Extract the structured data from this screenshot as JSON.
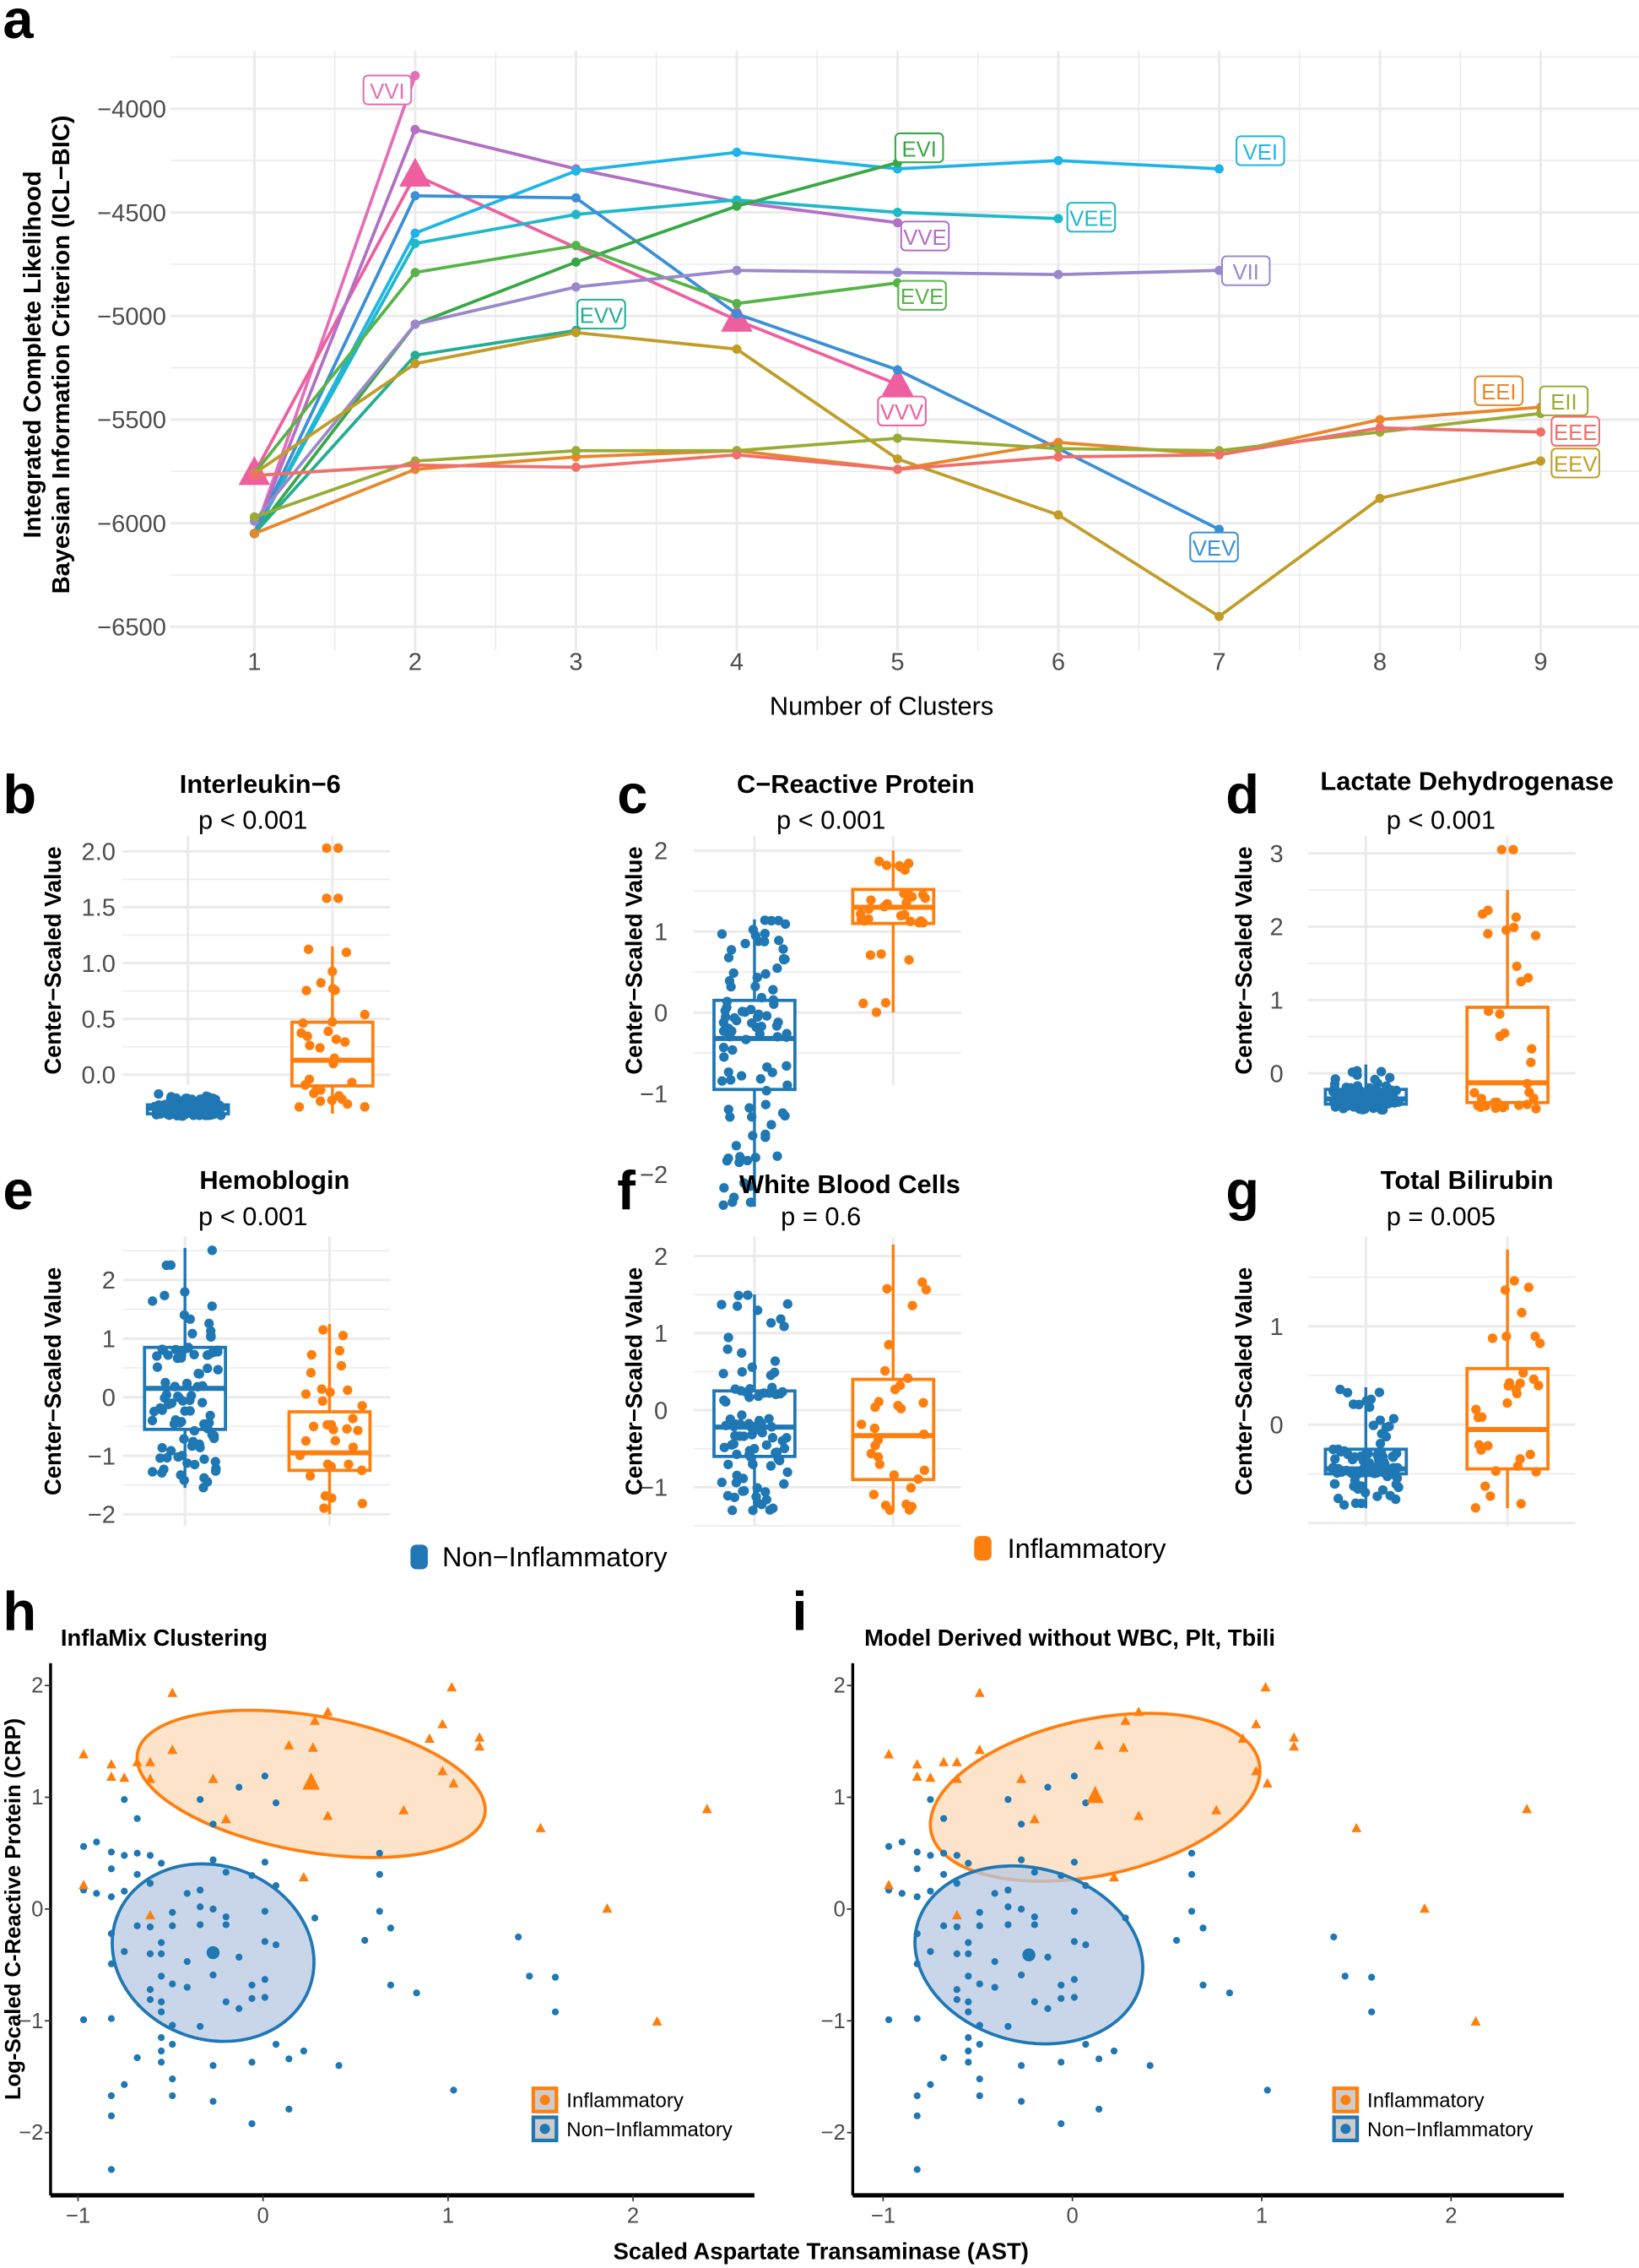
{
  "panel_letters": {
    "a": "a",
    "b": "b",
    "c": "c",
    "d": "d",
    "e": "e",
    "f": "f",
    "g": "g",
    "h": "h",
    "i": "i"
  },
  "chart_data": [
    {
      "id": "a",
      "type": "line",
      "xlabel": "Number of Clusters",
      "ylabel": [
        "Integrated Complete Likelihood",
        "Bayesian Information Criterion (ICL−BIC)"
      ],
      "xticks": [
        1,
        2,
        3,
        4,
        5,
        6,
        7,
        8,
        9
      ],
      "yticks": [
        -4000,
        -4500,
        -5000,
        -5500,
        -6000,
        -6500
      ],
      "ylim": [
        -6600,
        -3750
      ],
      "grid": true,
      "series": [
        {
          "name": "VVI",
          "color": "#e36fb8",
          "points": [
            [
              1,
              -6050
            ],
            [
              2,
              -3840
            ]
          ]
        },
        {
          "name": "VVV",
          "color": "#ee5fa0",
          "marker": "triangle",
          "points": [
            [
              1,
              -5760
            ],
            [
              2,
              -4320
            ],
            [
              3,
              -4670
            ],
            [
              4,
              -5020
            ],
            [
              5,
              -5330
            ]
          ]
        },
        {
          "name": "VVE",
          "color": "#b26fc3",
          "points": [
            [
              1,
              -6050
            ],
            [
              2,
              -4100
            ],
            [
              3,
              -4290
            ],
            [
              4,
              -4450
            ],
            [
              5,
              -4550
            ]
          ]
        },
        {
          "name": "VEI",
          "color": "#1fb4e8",
          "points": [
            [
              1,
              -6050
            ],
            [
              2,
              -4600
            ],
            [
              3,
              -4300
            ],
            [
              4,
              -4210
            ],
            [
              5,
              -4290
            ],
            [
              6,
              -4250
            ],
            [
              7,
              -4290
            ]
          ]
        },
        {
          "name": "VEE",
          "color": "#1fb8c8",
          "points": [
            [
              1,
              -6050
            ],
            [
              2,
              -4650
            ],
            [
              3,
              -4510
            ],
            [
              4,
              -4440
            ],
            [
              5,
              -4500
            ],
            [
              6,
              -4530
            ]
          ]
        },
        {
          "name": "VEV",
          "color": "#3a8fd6",
          "points": [
            [
              1,
              -6050
            ],
            [
              2,
              -4420
            ],
            [
              3,
              -4430
            ],
            [
              4,
              -4990
            ],
            [
              5,
              -5260
            ],
            [
              6,
              -5640
            ],
            [
              7,
              -6030
            ]
          ]
        },
        {
          "name": "EVI",
          "color": "#38a846",
          "points": [
            [
              1,
              -6050
            ],
            [
              2,
              -5040
            ],
            [
              3,
              -4740
            ],
            [
              4,
              -4470
            ],
            [
              5,
              -4260
            ]
          ]
        },
        {
          "name": "EVE",
          "color": "#56b447",
          "points": [
            [
              1,
              -5760
            ],
            [
              2,
              -4790
            ],
            [
              3,
              -4660
            ],
            [
              4,
              -4940
            ],
            [
              5,
              -4840
            ]
          ]
        },
        {
          "name": "VII",
          "color": "#9b88cc",
          "points": [
            [
              1,
              -5990
            ],
            [
              2,
              -5040
            ],
            [
              3,
              -4860
            ],
            [
              4,
              -4780
            ],
            [
              5,
              -4790
            ],
            [
              6,
              -4800
            ],
            [
              7,
              -4780
            ]
          ]
        },
        {
          "name": "EVV",
          "color": "#22ad94",
          "points": [
            [
              1,
              -6050
            ],
            [
              2,
              -5190
            ],
            [
              3,
              -5070
            ]
          ]
        },
        {
          "name": "EEV",
          "color": "#c19d27",
          "points": [
            [
              1,
              -5760
            ],
            [
              2,
              -5230
            ],
            [
              3,
              -5080
            ],
            [
              4,
              -5160
            ],
            [
              5,
              -5690
            ],
            [
              6,
              -5960
            ],
            [
              7,
              -6450
            ],
            [
              8,
              -5880
            ],
            [
              9,
              -5700
            ]
          ]
        },
        {
          "name": "EEI",
          "color": "#e8862a",
          "points": [
            [
              1,
              -6050
            ],
            [
              2,
              -5740
            ],
            [
              3,
              -5680
            ],
            [
              4,
              -5650
            ],
            [
              5,
              -5740
            ],
            [
              6,
              -5610
            ],
            [
              7,
              -5670
            ],
            [
              8,
              -5500
            ],
            [
              9,
              -5440
            ]
          ]
        },
        {
          "name": "EII",
          "color": "#98ab35",
          "points": [
            [
              1,
              -5970
            ],
            [
              2,
              -5700
            ],
            [
              3,
              -5650
            ],
            [
              4,
              -5650
            ],
            [
              5,
              -5590
            ],
            [
              6,
              -5640
            ],
            [
              7,
              -5650
            ],
            [
              8,
              -5560
            ],
            [
              9,
              -5470
            ]
          ]
        },
        {
          "name": "EEE",
          "color": "#ef6f6a",
          "points": [
            [
              1,
              -5770
            ],
            [
              2,
              -5720
            ],
            [
              3,
              -5730
            ],
            [
              4,
              -5670
            ],
            [
              5,
              -5740
            ],
            [
              6,
              -5680
            ],
            [
              7,
              -5670
            ],
            [
              8,
              -5540
            ],
            [
              9,
              -5560
            ]
          ]
        }
      ]
    },
    {
      "id": "b",
      "type": "box",
      "title": "Interleukin−6",
      "pvalue": "p < 0.001",
      "ylabel": "Center−Scaled Value",
      "ytick_labels": [
        "0.0",
        "0.5",
        "1.0",
        "1.5",
        "2.0"
      ],
      "groups": [
        {
          "name": "Non−Inflammatory",
          "min": -0.37,
          "q1": -0.35,
          "median": -0.3,
          "q3": -0.27,
          "max": -0.17,
          "outliers": []
        },
        {
          "name": "Inflammatory",
          "min": -0.35,
          "q1": -0.1,
          "median": 0.13,
          "q3": 0.47,
          "max": 1.15,
          "outliers": [
            1.58,
            1.58,
            2.03,
            2.03
          ]
        }
      ]
    },
    {
      "id": "c",
      "type": "box",
      "title": "C−Reactive Protein",
      "pvalue": "p < 0.001",
      "ylabel": "Center−Scaled Value",
      "ytick_labels": [
        "−2",
        "−1",
        "0",
        "1",
        "2"
      ],
      "groups": [
        {
          "name": "Non−Inflammatory",
          "min": -2.4,
          "q1": -0.95,
          "median": -0.32,
          "q3": 0.15,
          "max": 1.15,
          "outliers": []
        },
        {
          "name": "Inflammatory",
          "min": 0.0,
          "q1": 1.1,
          "median": 1.3,
          "q3": 1.52,
          "max": 2.0,
          "outliers": []
        }
      ]
    },
    {
      "id": "d",
      "type": "box",
      "title": "Lactate Dehydrogenase",
      "pvalue": "p < 0.001",
      "ylabel": "Center−Scaled Value",
      "ytick_labels": [
        "0",
        "1",
        "2",
        "3"
      ],
      "groups": [
        {
          "name": "Non−Inflammatory",
          "min": -0.5,
          "q1": -0.42,
          "median": -0.35,
          "q3": -0.22,
          "max": 0.12,
          "outliers": []
        },
        {
          "name": "Inflammatory",
          "min": -0.5,
          "q1": -0.4,
          "median": -0.13,
          "q3": 0.9,
          "max": 2.5,
          "outliers": [
            3.05,
            3.05
          ]
        }
      ]
    },
    {
      "id": "e",
      "type": "box",
      "title": "Hemoblogin",
      "pvalue": "p < 0.001",
      "ylabel": "Center−Scaled Value",
      "ytick_labels": [
        "−2",
        "−1",
        "0",
        "1",
        "2"
      ],
      "groups": [
        {
          "name": "Non−Inflammatory",
          "min": -1.55,
          "q1": -0.55,
          "median": 0.15,
          "q3": 0.85,
          "max": 2.55,
          "outliers": []
        },
        {
          "name": "Inflammatory",
          "min": -2.0,
          "q1": -1.25,
          "median": -0.95,
          "q3": -0.25,
          "max": 1.25,
          "outliers": []
        }
      ]
    },
    {
      "id": "f",
      "type": "box",
      "title": "White Blood Cells",
      "pvalue": "p = 0.6",
      "ylabel": "Center−Scaled Value",
      "ytick_labels": [
        "−1",
        "0",
        "1",
        "2"
      ],
      "groups": [
        {
          "name": "Non−Inflammatory",
          "min": -1.3,
          "q1": -0.6,
          "median": -0.22,
          "q3": 0.25,
          "max": 1.5,
          "outliers": []
        },
        {
          "name": "Inflammatory",
          "min": -1.3,
          "q1": -0.9,
          "median": -0.33,
          "q3": 0.4,
          "max": 2.15,
          "outliers": []
        }
      ]
    },
    {
      "id": "g",
      "type": "box",
      "title": "Total Bilirubin",
      "pvalue": "p = 0.005",
      "ylabel": "Center−Scaled Value",
      "ytick_labels": [
        "0",
        "1"
      ],
      "groups": [
        {
          "name": "Non−Inflammatory",
          "min": -0.85,
          "q1": -0.5,
          "median": -0.45,
          "q3": -0.25,
          "max": 0.38,
          "outliers": []
        },
        {
          "name": "Inflammatory",
          "min": -0.85,
          "q1": -0.45,
          "median": -0.05,
          "q3": 0.57,
          "max": 1.78,
          "outliers": []
        }
      ]
    },
    {
      "id": "h",
      "type": "scatter",
      "title": "InflaMix Clustering",
      "centroids": {
        "Inflammatory": [
          0.26,
          1.12
        ],
        "Non−Inflammatory": [
          -0.27,
          -0.39
        ]
      }
    },
    {
      "id": "i",
      "type": "scatter",
      "title": "Model Derived without WBC, Plt, Tbili",
      "centroids": {
        "Inflammatory": [
          0.12,
          1.0
        ],
        "Non−Inflammatory": [
          -0.23,
          -0.41
        ]
      }
    }
  ],
  "scatter_shared": {
    "xlabel": "Scaled Aspartate Transaminase (AST)",
    "ylabel": "Log-Scaled C-Reactive Protein (CRP)",
    "xticks": [
      -1,
      0,
      1,
      2
    ],
    "yticks": [
      -2,
      -1,
      0,
      1,
      2
    ],
    "legend": [
      "Inflammatory",
      "Non−Inflammatory"
    ],
    "inflammatory": [
      [
        -0.49,
        1.93
      ],
      [
        1.02,
        1.98
      ],
      [
        0.35,
        1.76
      ],
      [
        0.28,
        1.68
      ],
      [
        0.97,
        1.65
      ],
      [
        0.9,
        1.52
      ],
      [
        1.17,
        1.53
      ],
      [
        1.17,
        1.45
      ],
      [
        -0.97,
        1.38
      ],
      [
        -0.49,
        1.42
      ],
      [
        0.14,
        1.46
      ],
      [
        0.27,
        1.44
      ],
      [
        -0.82,
        1.29
      ],
      [
        -0.68,
        1.31
      ],
      [
        -0.61,
        1.31
      ],
      [
        -0.82,
        1.18
      ],
      [
        -0.75,
        1.17
      ],
      [
        -0.61,
        1.16
      ],
      [
        -0.27,
        1.16
      ],
      [
        0.97,
        1.23
      ],
      [
        1.03,
        1.12
      ],
      [
        0.35,
        0.83
      ],
      [
        0.76,
        0.88
      ],
      [
        -0.2,
        0.8
      ],
      [
        2.4,
        0.89
      ],
      [
        1.5,
        0.72
      ],
      [
        0.22,
        0.28
      ],
      [
        -0.97,
        0.21
      ],
      [
        1.86,
        0
      ],
      [
        2.13,
        -1.01
      ],
      [
        -0.61,
        -0.06
      ]
    ],
    "non_inflammatory": [
      [
        -0.34,
        0.98
      ],
      [
        -0.13,
        1.09
      ],
      [
        0.01,
        1.19
      ],
      [
        0.07,
        0.95
      ],
      [
        -0.27,
        0.76
      ],
      [
        -0.75,
        0.98
      ],
      [
        -0.68,
        0.81
      ],
      [
        -0.97,
        0.56
      ],
      [
        -0.9,
        0.6
      ],
      [
        -0.82,
        0.51
      ],
      [
        -0.75,
        0.48
      ],
      [
        -0.68,
        0.5
      ],
      [
        -0.61,
        0.48
      ],
      [
        -0.82,
        0.36
      ],
      [
        -0.68,
        0.31
      ],
      [
        -0.55,
        0.41
      ],
      [
        -0.27,
        0.44
      ],
      [
        0.01,
        0.42
      ],
      [
        0.63,
        0.5
      ],
      [
        0.63,
        0.31
      ],
      [
        -0.97,
        0.17
      ],
      [
        -0.9,
        0.14
      ],
      [
        -0.82,
        0.11
      ],
      [
        -0.75,
        0.16
      ],
      [
        -0.61,
        0.23
      ],
      [
        -0.2,
        0.33
      ],
      [
        -0.06,
        0.3
      ],
      [
        0.07,
        0.21
      ],
      [
        -0.41,
        0.14
      ],
      [
        -0.34,
        0.17
      ],
      [
        -0.34,
        0.02
      ],
      [
        -0.27,
        0
      ],
      [
        -0.2,
        -0.07
      ],
      [
        -0.49,
        -0.03
      ],
      [
        0.01,
        -0.02
      ],
      [
        0.28,
        -0.08
      ],
      [
        0.63,
        -0.02
      ],
      [
        0.69,
        -0.17
      ],
      [
        0.55,
        -0.28
      ],
      [
        1.38,
        -0.25
      ],
      [
        -0.82,
        -0.22
      ],
      [
        -0.75,
        -0.38
      ],
      [
        -0.68,
        -0.15
      ],
      [
        -0.61,
        -0.16
      ],
      [
        -0.55,
        -0.3
      ],
      [
        -0.49,
        -0.15
      ],
      [
        -0.34,
        -0.14
      ],
      [
        -0.2,
        -0.14
      ],
      [
        0.01,
        -0.29
      ],
      [
        0.07,
        -0.32
      ],
      [
        -0.61,
        -0.4
      ],
      [
        -0.55,
        -0.4
      ],
      [
        -0.41,
        -0.47
      ],
      [
        -0.13,
        -0.43
      ],
      [
        -0.82,
        -0.49
      ],
      [
        -0.27,
        -0.59
      ],
      [
        -0.55,
        -0.6
      ],
      [
        -0.41,
        -0.7
      ],
      [
        -0.61,
        -0.72
      ],
      [
        -0.49,
        -0.67
      ],
      [
        0.01,
        -0.63
      ],
      [
        -0.06,
        -0.68
      ],
      [
        -0.61,
        -0.81
      ],
      [
        -0.55,
        -0.83
      ],
      [
        -0.2,
        -0.83
      ],
      [
        -0.06,
        -0.8
      ],
      [
        0.01,
        -0.79
      ],
      [
        -0.13,
        -0.89
      ],
      [
        -0.55,
        -0.92
      ],
      [
        0.69,
        -0.68
      ],
      [
        0.83,
        -0.75
      ],
      [
        1.44,
        -0.6
      ],
      [
        1.58,
        -0.61
      ],
      [
        1.58,
        -0.92
      ],
      [
        -0.97,
        -0.99
      ],
      [
        -0.82,
        -0.98
      ],
      [
        -0.49,
        -1.04
      ],
      [
        -0.34,
        -1.05
      ],
      [
        -0.55,
        -1.15
      ],
      [
        -0.49,
        -1.21
      ],
      [
        -0.55,
        -1.27
      ],
      [
        -0.68,
        -1.33
      ],
      [
        -0.55,
        -1.37
      ],
      [
        -0.27,
        -1.4
      ],
      [
        -0.06,
        -1.37
      ],
      [
        0.07,
        -1.21
      ],
      [
        0.14,
        -1.34
      ],
      [
        0.22,
        -1.27
      ],
      [
        0.41,
        -1.4
      ],
      [
        -0.49,
        -1.52
      ],
      [
        -0.75,
        -1.57
      ],
      [
        -0.49,
        -1.67
      ],
      [
        -0.82,
        -1.67
      ],
      [
        -0.27,
        -1.72
      ],
      [
        0.14,
        -1.79
      ],
      [
        1.03,
        -1.62
      ],
      [
        -0.82,
        -1.85
      ],
      [
        -0.06,
        -1.92
      ],
      [
        -0.82,
        -2.33
      ]
    ]
  },
  "box_legend": {
    "non_inflammatory": "Non−Inflammatory",
    "inflammatory": "Inflammatory"
  },
  "colors": {
    "non_inflammatory": "#1f77b4",
    "inflammatory": "#ff7f0e",
    "grid": "#ebebeb",
    "tick_text": "#4d4d4d"
  }
}
